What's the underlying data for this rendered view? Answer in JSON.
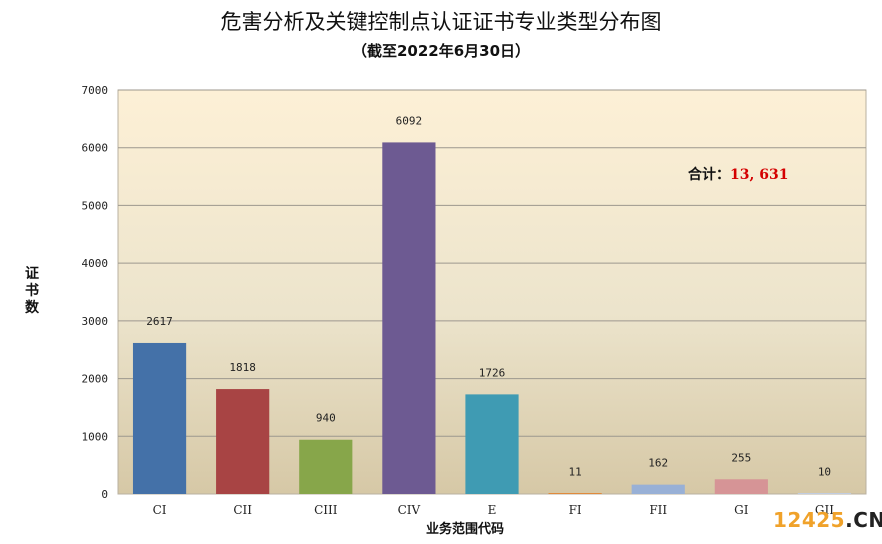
{
  "chart_data": {
    "type": "bar",
    "title": "危害分析及关键控制点认证证书专业类型分布图",
    "subtitle": "（截至2022年6月30日）",
    "xlabel": "业务范围代码",
    "ylabel": "证书数",
    "ylim": [
      0,
      7000
    ],
    "yticks": [
      "0",
      "1000",
      "2000",
      "3000",
      "4000",
      "5000",
      "6000",
      "7000"
    ],
    "categories": [
      "CI",
      "CII",
      "CIII",
      "CIV",
      "E",
      "FI",
      "FII",
      "GI",
      "GII"
    ],
    "values": [
      2617,
      1818,
      940,
      6092,
      1726,
      11,
      162,
      255,
      10
    ],
    "data_labels": [
      "2617",
      "1818",
      "940",
      "6092",
      "1726",
      "11",
      "162",
      "255",
      "10"
    ],
    "colors": [
      "#4471a8",
      "#a84444",
      "#87a64a",
      "#6d5a92",
      "#3f9bb3",
      "#e08a3c",
      "#98b0d6",
      "#d69496",
      "#c0cce0"
    ],
    "grid": true,
    "legend": "none",
    "annotation": {
      "label": "合计：",
      "value": "13, 631"
    }
  },
  "watermark": {
    "number": "12425",
    "domain": ".CN"
  }
}
